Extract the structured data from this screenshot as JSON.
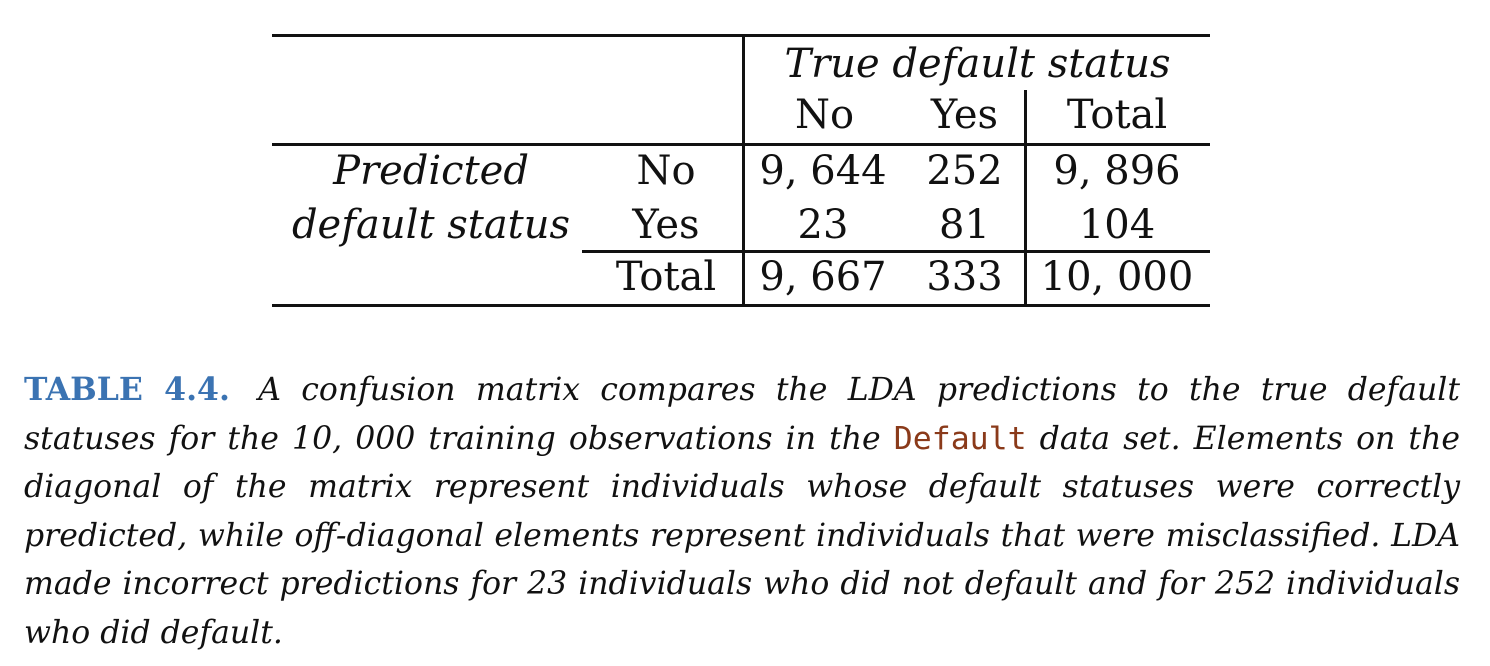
{
  "table": {
    "header_group": "True default status",
    "col_headers": [
      "No",
      "Yes",
      "Total"
    ],
    "row_group_line1": "Predicted",
    "row_group_line2": "default status",
    "rows": [
      {
        "label": "No",
        "values": [
          "9, 644",
          "252",
          "9, 896"
        ]
      },
      {
        "label": "Yes",
        "values": [
          "23",
          "81",
          "104"
        ]
      },
      {
        "label": "Total",
        "values": [
          "9, 667",
          "333",
          "10, 000"
        ]
      }
    ]
  },
  "caption": {
    "label": "TABLE 4.4.",
    "text_before_code": "A confusion matrix compares the LDA predictions to the true default statuses for the 10, 000 training observations in the",
    "code": "Default",
    "text_after_code": "data set. Elements on the diagonal of the matrix represent individuals whose default statuses were correctly predicted, while off-diagonal elements represent individuals that were misclassified. LDA made incorrect predictions for 23 individuals who did not default and for 252 individuals who did default."
  }
}
